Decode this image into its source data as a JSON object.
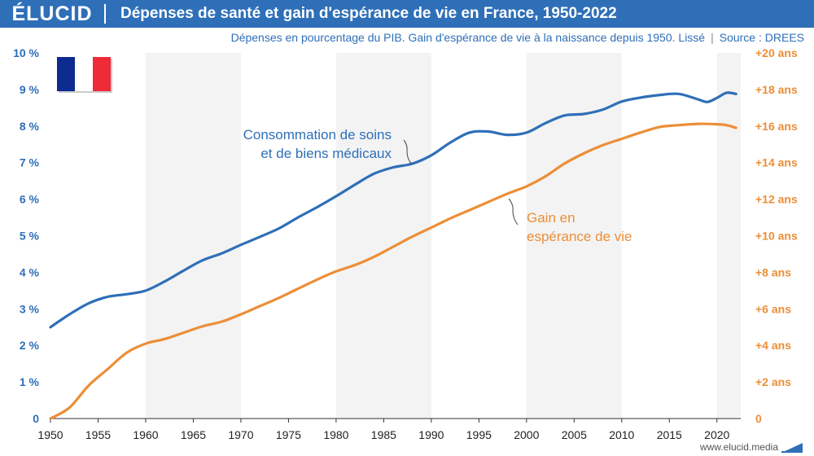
{
  "header": {
    "logo": "ÉLUCID",
    "title": "Dépenses de santé et gain d'espérance de vie en France, 1950-2022"
  },
  "subtitle": {
    "text": "Dépenses en pourcentage du PIB. Gain d'espérance de vie à la naissance depuis 1950. Lissé",
    "source": "Source : DREES"
  },
  "footer": {
    "url": "www.elucid.media"
  },
  "colors": {
    "blue": "#2e6fb8",
    "orange": "#ec8e37",
    "band": "#f3f3f3",
    "flag_blue": "#0c2a8f",
    "flag_white": "#ffffff",
    "flag_red": "#ef2b3a"
  },
  "icons": {
    "flag": "france-flag-icon"
  },
  "chart_data": {
    "type": "line",
    "title": "Dépenses de santé et gain d'espérance de vie en France, 1950-2022",
    "xlim": [
      1950,
      2022.5
    ],
    "ylim_left": [
      0,
      10
    ],
    "ylim_right": [
      0,
      20
    ],
    "x_ticks": [
      "1950",
      "1955",
      "1960",
      "1965",
      "1970",
      "1975",
      "1980",
      "1985",
      "1990",
      "1995",
      "2000",
      "2005",
      "2010",
      "2015",
      "2020"
    ],
    "y_left_ticks": [
      "0",
      "1 %",
      "2 %",
      "3 %",
      "4 %",
      "5 %",
      "6 %",
      "7 %",
      "8 %",
      "9 %",
      "10 %"
    ],
    "y_right_ticks": [
      "0",
      "+2 ans",
      "+4 ans",
      "+6 ans",
      "+8 ans",
      "+10 ans",
      "+12 ans",
      "+14 ans",
      "+16 ans",
      "+18 ans",
      "+20 ans"
    ],
    "alternate_bands": true,
    "series": [
      {
        "name": "Consommation de soins et de biens médicaux",
        "label_lines": [
          "Consommation de soins",
          "et de biens médicaux"
        ],
        "axis": "left",
        "color": "#2e6fb8",
        "x": [
          1950,
          1952,
          1954,
          1956,
          1958,
          1960,
          1962,
          1964,
          1966,
          1968,
          1970,
          1972,
          1974,
          1976,
          1978,
          1980,
          1982,
          1984,
          1986,
          1988,
          1990,
          1992,
          1994,
          1996,
          1998,
          2000,
          2002,
          2004,
          2006,
          2008,
          2010,
          2012,
          2014,
          2016,
          2018,
          2019,
          2020,
          2021,
          2022
        ],
        "y": [
          2.5,
          2.85,
          3.15,
          3.33,
          3.4,
          3.5,
          3.75,
          4.05,
          4.33,
          4.52,
          4.75,
          4.97,
          5.2,
          5.5,
          5.78,
          6.08,
          6.4,
          6.7,
          6.87,
          6.97,
          7.2,
          7.55,
          7.82,
          7.85,
          7.76,
          7.82,
          8.08,
          8.29,
          8.33,
          8.45,
          8.67,
          8.78,
          8.85,
          8.88,
          8.73,
          8.66,
          8.77,
          8.91,
          8.88
        ]
      },
      {
        "name": "Gain en espérance de vie",
        "label_lines": [
          "Gain en",
          "espérance de vie"
        ],
        "axis": "right",
        "color": "#ec8e37",
        "x": [
          1950,
          1952,
          1954,
          1956,
          1958,
          1960,
          1962,
          1964,
          1966,
          1968,
          1970,
          1972,
          1974,
          1976,
          1978,
          1980,
          1982,
          1984,
          1986,
          1988,
          1990,
          1992,
          1994,
          1996,
          1998,
          2000,
          2002,
          2004,
          2006,
          2008,
          2010,
          2012,
          2014,
          2016,
          2018,
          2020,
          2021,
          2022
        ],
        "y": [
          0,
          0.6,
          1.8,
          2.7,
          3.6,
          4.1,
          4.35,
          4.7,
          5.05,
          5.3,
          5.7,
          6.15,
          6.6,
          7.1,
          7.6,
          8.05,
          8.4,
          8.85,
          9.4,
          9.95,
          10.45,
          10.95,
          11.4,
          11.85,
          12.3,
          12.7,
          13.25,
          13.95,
          14.5,
          14.95,
          15.3,
          15.65,
          15.95,
          16.05,
          16.12,
          16.1,
          16.05,
          15.9
        ]
      }
    ]
  }
}
